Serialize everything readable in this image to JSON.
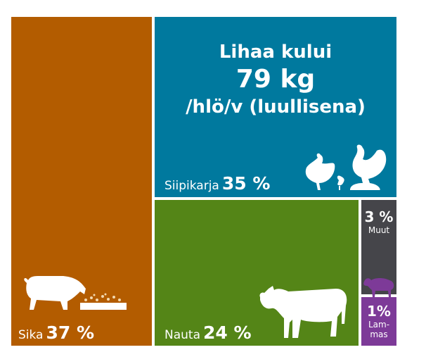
{
  "chart_data": {
    "type": "treemap",
    "title_lines": [
      "Lihaa kului",
      "79 kg",
      "/hlö/v (luullisena)"
    ],
    "items": [
      {
        "name": "Sika",
        "value": 37,
        "label": "37 %",
        "color": "#b35c00",
        "icon": "pig-icon"
      },
      {
        "name": "Siipikarja",
        "value": 35,
        "label": "35 %",
        "color": "#00799e",
        "icon": "chicken-icon"
      },
      {
        "name": "Nauta",
        "value": 24,
        "label": "24 %",
        "color": "#548517",
        "icon": "cow-icon"
      },
      {
        "name": "Muut",
        "value": 3,
        "label": "3 %",
        "color": "#45454a"
      },
      {
        "name": "Lammas",
        "name_lines": [
          "Lam-",
          "mas"
        ],
        "value": 1,
        "label": "1%",
        "color": "#7d3a98",
        "icon": "sheep-icon"
      }
    ],
    "unit": "%"
  }
}
